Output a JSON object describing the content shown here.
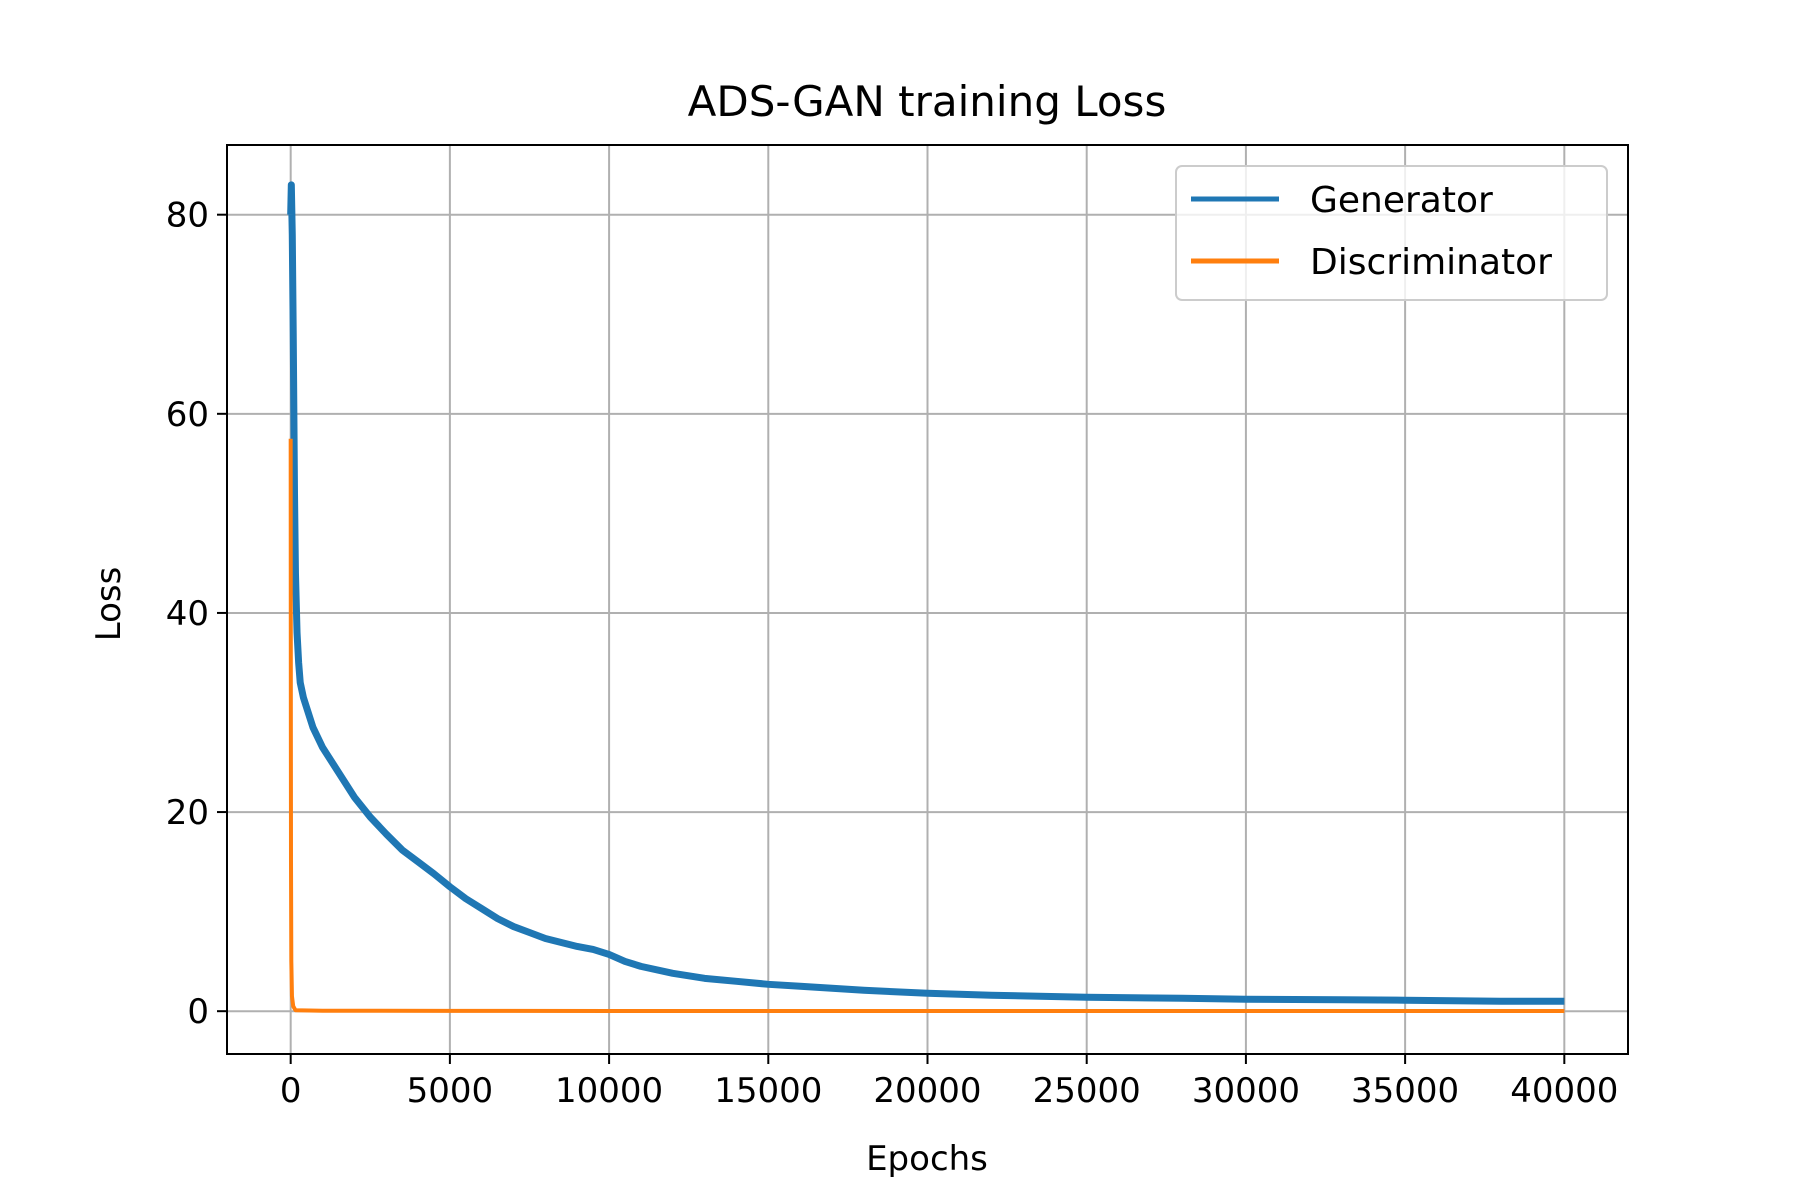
{
  "chart_data": {
    "type": "line",
    "title": "ADS-GAN training Loss",
    "xlabel": "Epochs",
    "ylabel": "Loss",
    "xlim": [
      -2000,
      42000
    ],
    "ylim": [
      -4.3,
      87
    ],
    "xticks": [
      0,
      5000,
      10000,
      15000,
      20000,
      25000,
      30000,
      35000,
      40000
    ],
    "yticks": [
      0,
      20,
      40,
      60,
      80
    ],
    "grid": true,
    "legend_position": "upper-right",
    "series": [
      {
        "name": "Generator",
        "color": "#1f77b4",
        "x": [
          0,
          20,
          50,
          80,
          100,
          120,
          150,
          200,
          250,
          300,
          400,
          500,
          700,
          1000,
          1500,
          2000,
          2500,
          3000,
          3500,
          4000,
          4500,
          5000,
          5500,
          6000,
          6500,
          7000,
          7500,
          8000,
          8500,
          9000,
          9500,
          10000,
          10500,
          11000,
          12000,
          13000,
          14000,
          15000,
          16000,
          17000,
          18000,
          20000,
          22000,
          25000,
          28000,
          30000,
          33000,
          35000,
          38000,
          40000
        ],
        "y": [
          80,
          83,
          78,
          68,
          60,
          52,
          44,
          38,
          35,
          33,
          31.5,
          30.5,
          28.5,
          26.5,
          24,
          21.5,
          19.5,
          17.8,
          16.2,
          15,
          13.8,
          12.5,
          11.3,
          10.3,
          9.3,
          8.5,
          7.9,
          7.3,
          6.9,
          6.5,
          6.2,
          5.7,
          5.0,
          4.5,
          3.8,
          3.3,
          3.0,
          2.7,
          2.5,
          2.3,
          2.1,
          1.8,
          1.6,
          1.4,
          1.3,
          1.2,
          1.15,
          1.1,
          1.0,
          1.0
        ]
      },
      {
        "name": "Discriminator",
        "color": "#ff7f0e",
        "x": [
          0,
          5,
          10,
          20,
          40,
          80,
          150,
          1000,
          5000,
          10000,
          20000,
          30000,
          40000
        ],
        "y": [
          57.5,
          30,
          15,
          5,
          1.5,
          0.5,
          0.1,
          0.05,
          0.03,
          0.02,
          0.02,
          0.02,
          0.02
        ]
      }
    ]
  }
}
